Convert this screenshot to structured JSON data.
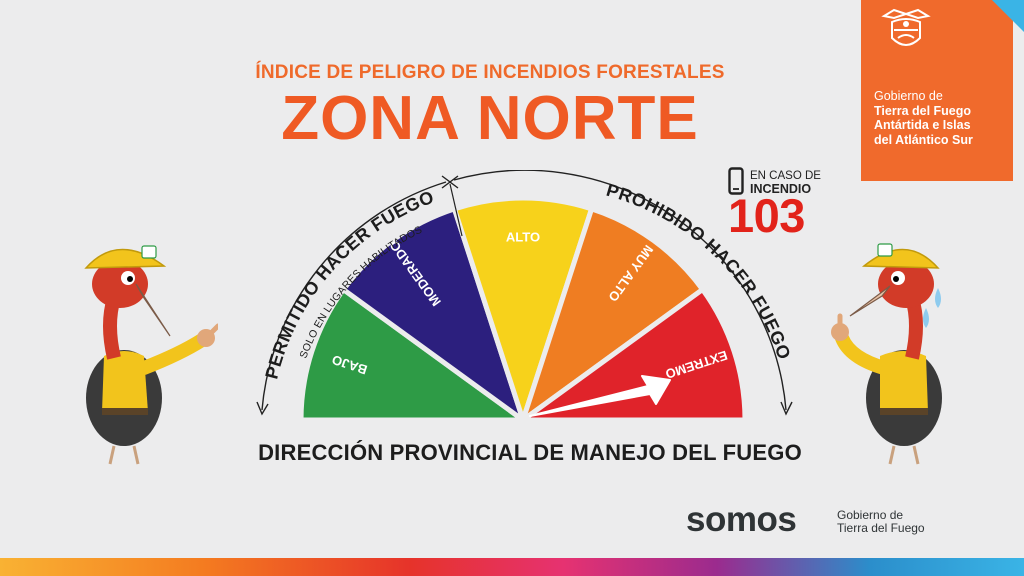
{
  "header": {
    "subtitle": "ÍNDICE DE PELIGRO DE INCENDIOS FORESTALES",
    "title": "ZONA NORTE"
  },
  "government": {
    "line1": "Gobierno de",
    "line2": "Tierra del Fuego",
    "line3": "Antártida e Islas",
    "line4": "del Atlántico Sur",
    "logo_icon": "coat-of-arms-icon",
    "panel_color": "#f06a2c"
  },
  "emergency": {
    "caption_top": "EN CASO DE",
    "caption_bottom": "INCENDIO",
    "number": "103",
    "icon": "phone-icon"
  },
  "gauge": {
    "left_label": "PERMITIDO HACER FUEGO",
    "left_sublabel": "SOLO EN LUGARES HABILITADOS",
    "right_label": "PROHIBIDO HACER FUEGO",
    "current_level": "EXTREMO",
    "levels": [
      {
        "label": "BAJO",
        "color": "#2e9b46"
      },
      {
        "label": "MODERADO",
        "color": "#2c1f7e"
      },
      {
        "label": "ALTO",
        "color": "#f7d21b"
      },
      {
        "label": "MUY ALTO",
        "color": "#ef7d22"
      },
      {
        "label": "EXTREMO",
        "color": "#e0232a"
      }
    ]
  },
  "footer": {
    "title": "DIRECCIÓN PROVINCIAL DE MANEJO DEL FUEGO",
    "brand": "somos",
    "brand_sub_line1": "Gobierno de",
    "brand_sub_line2": "Tierra del Fuego"
  }
}
